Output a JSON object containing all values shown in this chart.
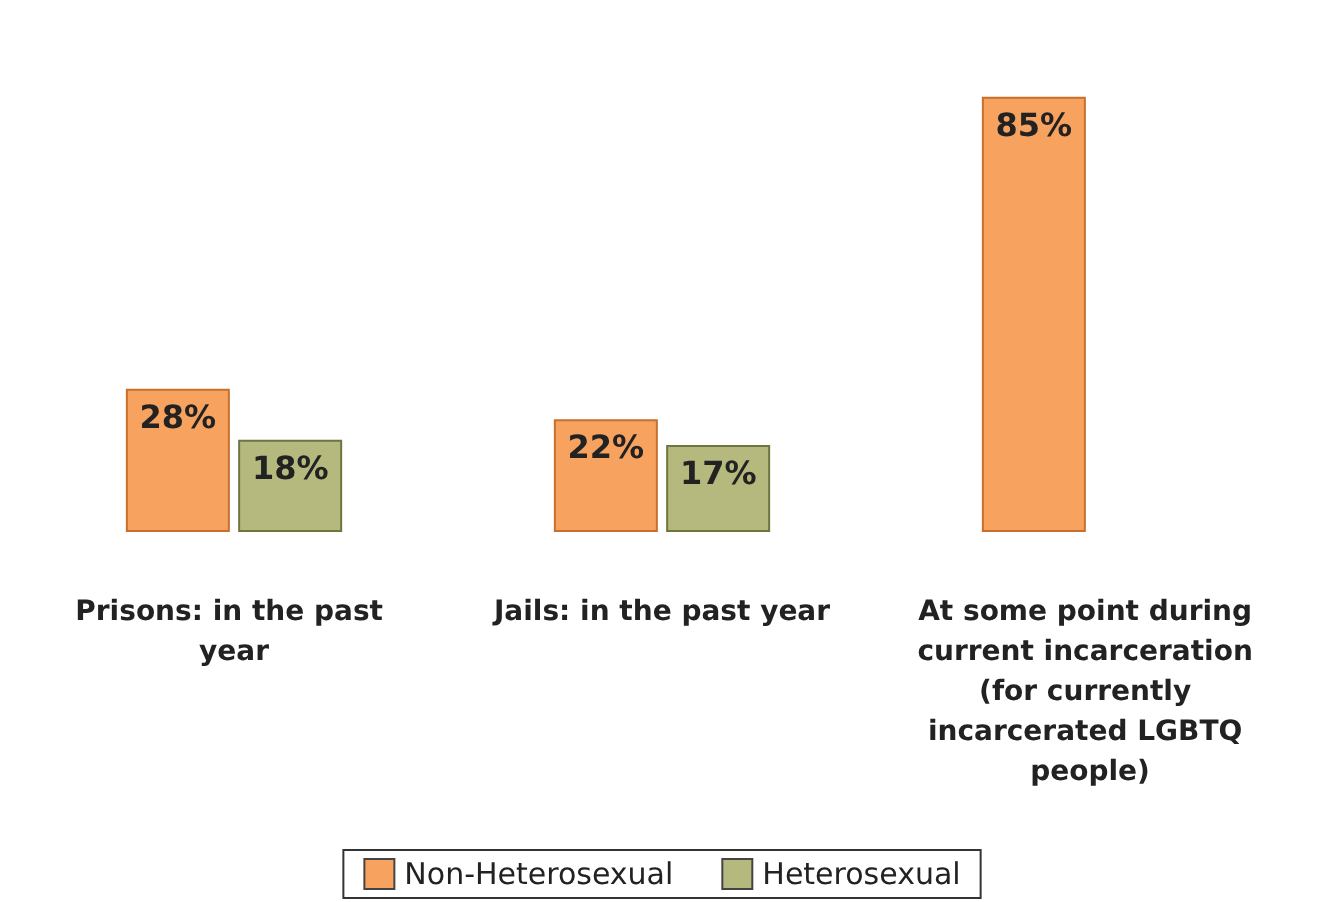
{
  "chart_data": {
    "type": "bar",
    "categories": [
      "Prisons: in the past year",
      "Jails: in the past year",
      "At some point during current incarceration (for currently incarcerated LGBTQ people)"
    ],
    "series": [
      {
        "name": "Non-Heterosexual",
        "color": "#f7a25e",
        "values": [
          28,
          22,
          85
        ],
        "value_labels": [
          "28%",
          "22%",
          "85%"
        ]
      },
      {
        "name": "Heterosexual",
        "color": "#b5b97e",
        "values": [
          18,
          17,
          null
        ],
        "value_labels": [
          "18%",
          "17%",
          null
        ]
      }
    ],
    "legend": "bottom"
  }
}
